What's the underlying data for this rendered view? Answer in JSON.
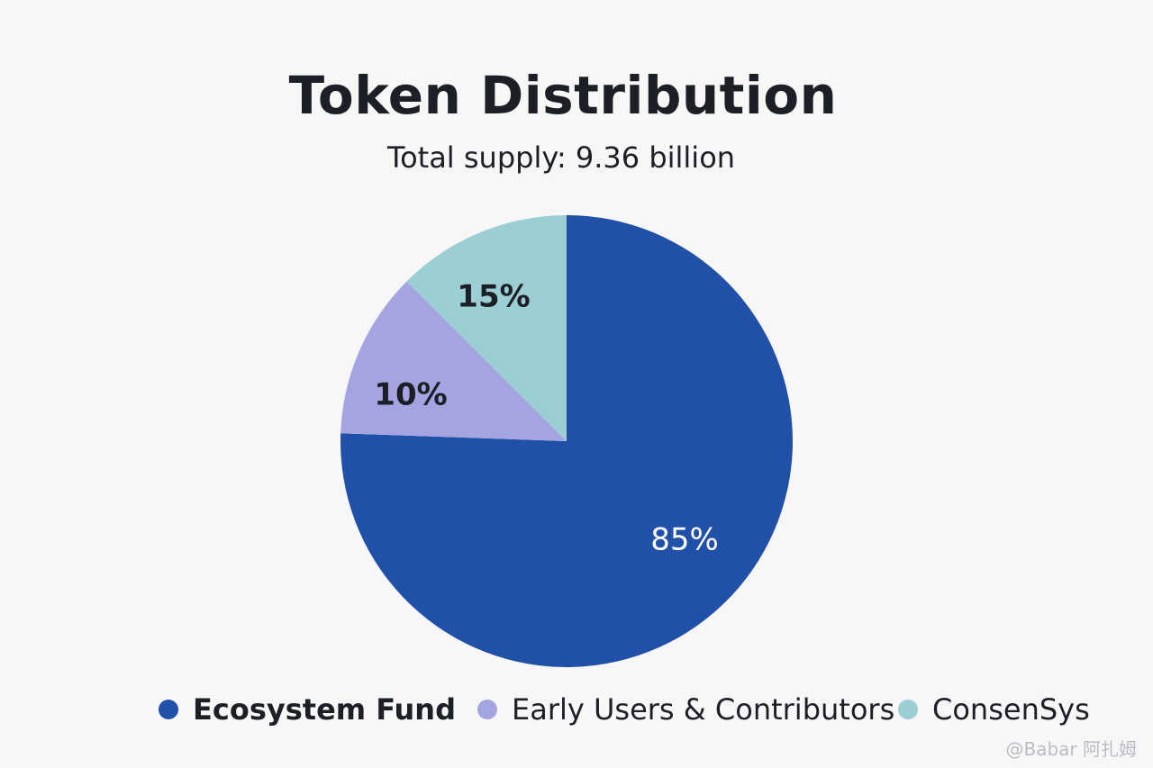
{
  "header": {
    "title": "Token Distribution",
    "subtitle": "Total supply: 9.36 billion"
  },
  "chart_data": {
    "type": "pie",
    "title": "Token Distribution",
    "subtitle": "Total supply: 9.36 billion",
    "slices": [
      {
        "name": "Ecosystem Fund",
        "value": 85,
        "label": "85%",
        "color": "#2150a8",
        "label_color": "#ffffff"
      },
      {
        "name": "Early Users & Contributors",
        "value": 10,
        "label": "10%",
        "color": "#a4a5e0",
        "label_color": "#1c1f26"
      },
      {
        "name": "ConsenSys",
        "value": 15,
        "label": "15%",
        "color": "#9ccfd4",
        "label_color": "#1c1f26"
      }
    ],
    "legend_position": "bottom"
  },
  "watermark": {
    "text": "@Babar 阿扎姆"
  }
}
